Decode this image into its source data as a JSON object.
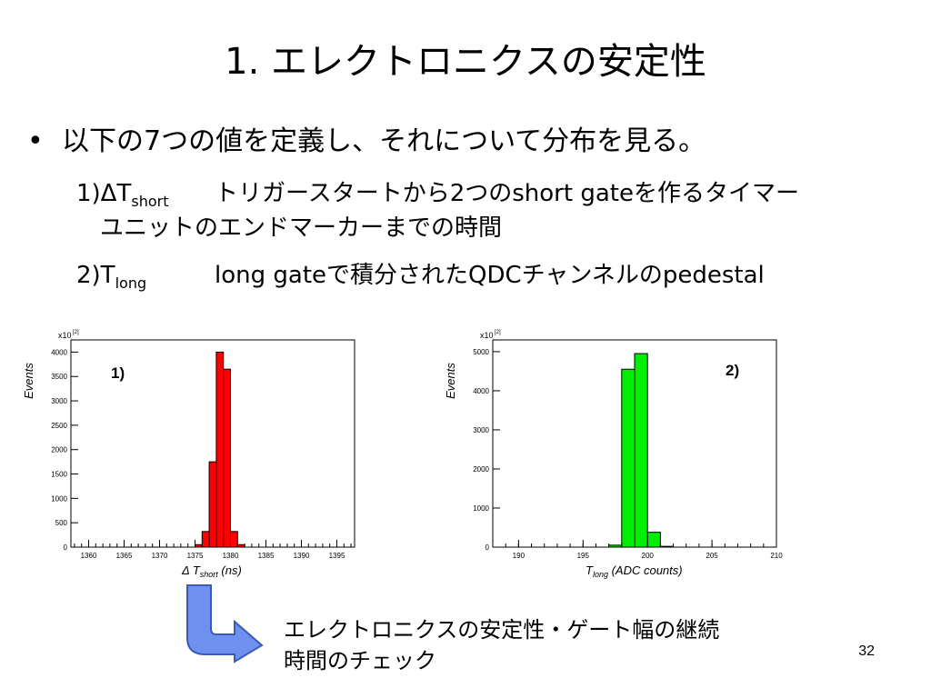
{
  "slide": {
    "title": "1. エレクトロニクスの安定性",
    "bullet_mark": "•",
    "bullet_text": "以下の7つの値を定義し、それについて分布を見る。",
    "item1": {
      "prefix": "1)ΔT",
      "sub": "short",
      "text_line1": "トリガースタートから2つのshort gateを作るタイマー",
      "text_line2": "ユニットのエンドマーカーまでの時間"
    },
    "item2": {
      "prefix": "2)T",
      "sub": "long",
      "text": "long gateで積分されたQDCチャンネルのpedestal"
    },
    "note_line1": "エレクトロニクスの安定性・ゲート幅の継続",
    "note_line2": "時間のチェック",
    "page_number": "32"
  },
  "chart_data": [
    {
      "type": "bar",
      "title": "",
      "panel_label": "1)",
      "ylabel": "Events",
      "xlabel_prefix": "Δ T",
      "xlabel_sub": "short",
      "xlabel_suffix": " (ns)",
      "exponent_label": "x10",
      "exponent_sup": "[2]",
      "xlim": [
        1357.5,
        1397.5
      ],
      "ylim": [
        0,
        4250
      ],
      "x_ticks": [
        1360,
        1365,
        1370,
        1375,
        1380,
        1385,
        1390,
        1395
      ],
      "y_ticks": [
        0,
        500,
        1000,
        1500,
        2000,
        2500,
        3000,
        3500,
        4000
      ],
      "bin_width": 1,
      "bins": [
        {
          "x": 1375,
          "value": 50
        },
        {
          "x": 1376,
          "value": 320
        },
        {
          "x": 1377,
          "value": 1750
        },
        {
          "x": 1378,
          "value": 4000
        },
        {
          "x": 1379,
          "value": 3650
        },
        {
          "x": 1380,
          "value": 320
        },
        {
          "x": 1381,
          "value": 50
        }
      ],
      "color": "#ff0000"
    },
    {
      "type": "bar",
      "title": "",
      "panel_label": "2)",
      "ylabel": "Events",
      "xlabel_prefix": "T",
      "xlabel_sub": "long",
      "xlabel_suffix": " (ADC counts)",
      "exponent_label": "x10",
      "exponent_sup": "[2]",
      "xlim": [
        188,
        210
      ],
      "ylim": [
        0,
        5300
      ],
      "x_ticks": [
        190,
        195,
        200,
        205,
        210
      ],
      "y_ticks": [
        0,
        1000,
        2000,
        3000,
        4000,
        5000
      ],
      "bin_width": 1,
      "bins": [
        {
          "x": 197,
          "value": 50
        },
        {
          "x": 198,
          "value": 4550
        },
        {
          "x": 199,
          "value": 4950
        },
        {
          "x": 200,
          "value": 380
        },
        {
          "x": 201,
          "value": 20
        }
      ],
      "color": "#00ee00"
    }
  ]
}
